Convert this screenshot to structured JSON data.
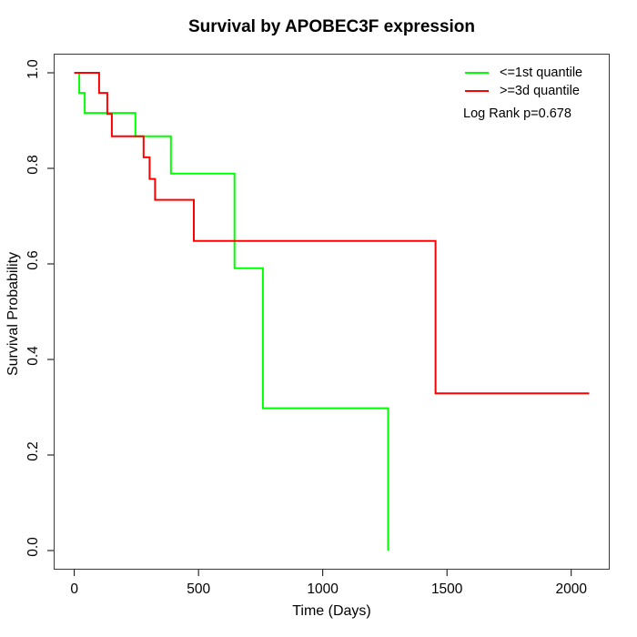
{
  "title": "Survival by APOBEC3F expression",
  "chart_data": {
    "type": "line",
    "subtype": "kaplan-meier-step",
    "title": "Survival by APOBEC3F expression",
    "xlabel": "Time (Days)",
    "ylabel": "Survival Probability",
    "xlim": [
      0,
      2072
    ],
    "ylim": [
      0,
      1
    ],
    "x_ticks": [
      0,
      500,
      1000,
      1500,
      2000
    ],
    "x_tick_labels": [
      "0",
      "500",
      "1000",
      "1500",
      "2000"
    ],
    "y_ticks": [
      0,
      0.2,
      0.4,
      0.6,
      0.8,
      1.0
    ],
    "y_tick_labels": [
      "0.0",
      "0.2",
      "0.4",
      "0.6",
      "0.8",
      "1.0"
    ],
    "grid": false,
    "legend_position": "top-right",
    "annotation": "Log Rank p=0.678",
    "axis_color": "#000000",
    "series": [
      {
        "name": "<=1st quantile",
        "color": "#00ff00",
        "steps": [
          [
            0,
            1.0
          ],
          [
            20,
            0.958
          ],
          [
            42,
            0.916
          ],
          [
            246,
            0.867
          ],
          [
            389,
            0.789
          ],
          [
            645,
            0.591
          ],
          [
            759,
            0.298
          ],
          [
            1263,
            0.0
          ]
        ]
      },
      {
        "name": ">=3d quantile",
        "color": "#ff0000",
        "steps": [
          [
            0,
            1.0
          ],
          [
            100,
            0.958
          ],
          [
            133,
            0.914
          ],
          [
            151,
            0.867
          ],
          [
            279,
            0.823
          ],
          [
            303,
            0.778
          ],
          [
            325,
            0.734
          ],
          [
            481,
            0.648
          ],
          [
            1454,
            0.329
          ],
          [
            2072,
            0.329
          ]
        ]
      }
    ]
  }
}
